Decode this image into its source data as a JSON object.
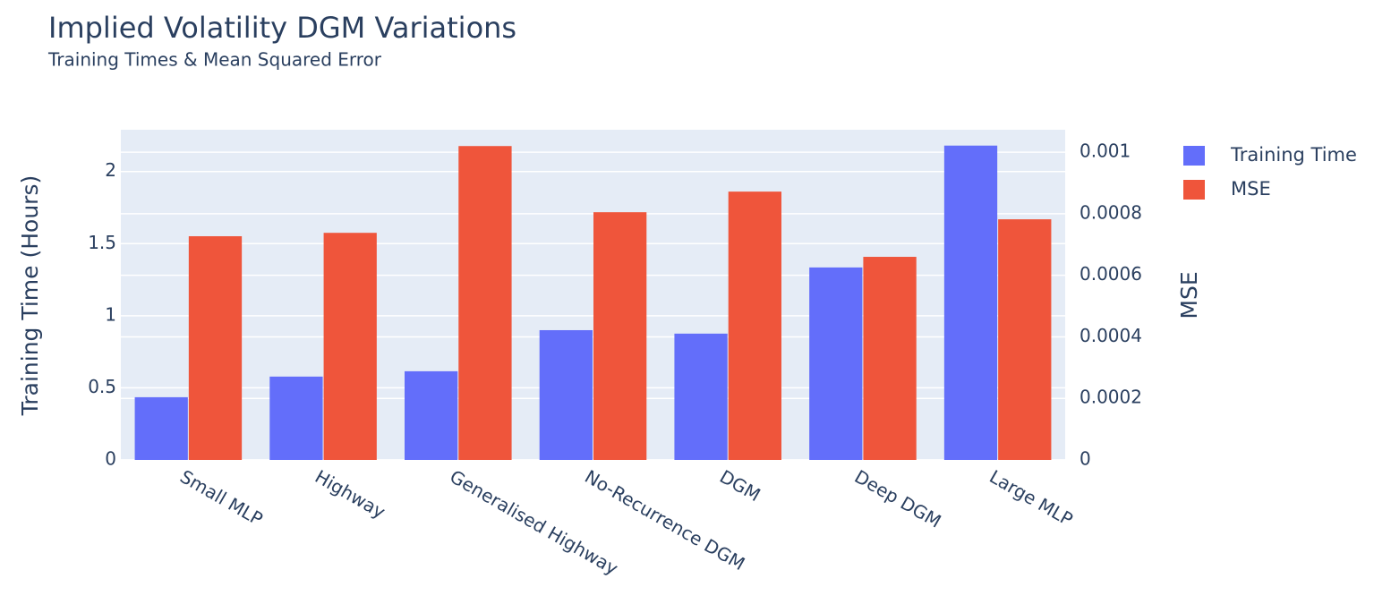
{
  "chart_data": {
    "type": "bar",
    "title": "Implied Volatility DGM Variations",
    "subtitle": "Training Times & Mean Squared Error",
    "y_label": "Training Time (Hours)",
    "y2_label": "MSE",
    "categories": [
      "Small MLP",
      "Highway",
      "Generalised Highway",
      "No-Recurrence DGM",
      "DGM",
      "Deep DGM",
      "Large MLP"
    ],
    "series": [
      {
        "name": "Training Time",
        "color": "#636efa",
        "values": [
          0.435,
          0.578,
          0.615,
          0.9,
          0.876,
          1.335,
          2.18
        ]
      },
      {
        "name": "MSE",
        "color": "#ef553b",
        "axis": "y2",
        "values": [
          0.000727,
          0.000738,
          0.00102,
          0.000805,
          0.000872,
          0.00066,
          0.000782
        ]
      }
    ],
    "ylim": [
      0,
      2.29
    ],
    "yticks": [
      0,
      0.5,
      1,
      1.5,
      2
    ],
    "y2lim": [
      0,
      0.001073
    ],
    "y2ticks": [
      0,
      0.0002,
      0.0004,
      0.0006,
      0.0008,
      0.001
    ],
    "grid": true,
    "legend": "right"
  }
}
